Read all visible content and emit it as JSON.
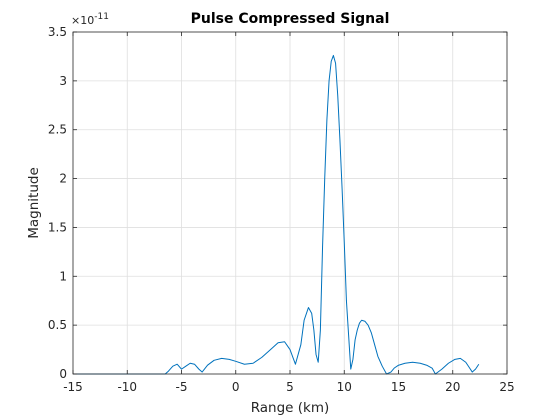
{
  "chart_data": {
    "type": "line",
    "title": "Pulse Compressed Signal",
    "xlabel": "Range (km)",
    "ylabel": "Magnitude",
    "xlim": [
      -15,
      25
    ],
    "ylim": [
      0,
      3.5
    ],
    "xticks": [
      -15,
      -10,
      -5,
      0,
      5,
      10,
      15,
      20,
      25
    ],
    "yticks": [
      0,
      0.5,
      1,
      1.5,
      2,
      2.5,
      3,
      3.5
    ],
    "y_exponent_label": "×10",
    "y_exponent_power": "-11",
    "grid": true,
    "series": [
      {
        "color": "#0072bd",
        "x": [
          -15,
          -6.5,
          -6.2,
          -5.8,
          -5.4,
          -5.0,
          -4.6,
          -4.2,
          -3.8,
          -3.4,
          -3.1,
          -2.6,
          -2.0,
          -1.3,
          -0.6,
          0.0,
          0.8,
          1.6,
          2.4,
          3.2,
          3.9,
          4.5,
          5.0,
          5.5,
          6.0,
          6.3,
          6.7,
          7.0,
          7.2,
          7.4,
          7.6,
          7.8,
          8.0,
          8.2,
          8.4,
          8.6,
          8.8,
          9.0,
          9.2,
          9.4,
          9.6,
          9.8,
          10.0,
          10.2,
          10.4,
          10.6,
          10.8,
          11.0,
          11.2,
          11.4,
          11.6,
          11.9,
          12.2,
          12.5,
          12.8,
          13.1,
          13.5,
          13.9,
          14.3,
          14.6,
          15.0,
          15.6,
          16.3,
          17.0,
          17.6,
          18.1,
          18.4,
          19.0,
          19.6,
          20.2,
          20.7,
          21.2,
          21.5,
          21.8,
          22.1,
          22.4
        ],
        "values": [
          0,
          0,
          0.03,
          0.08,
          0.1,
          0.05,
          0.08,
          0.11,
          0.1,
          0.05,
          0.02,
          0.09,
          0.14,
          0.16,
          0.15,
          0.13,
          0.1,
          0.11,
          0.17,
          0.25,
          0.32,
          0.33,
          0.25,
          0.1,
          0.3,
          0.55,
          0.68,
          0.62,
          0.45,
          0.2,
          0.12,
          0.45,
          1.3,
          2.0,
          2.6,
          3.0,
          3.2,
          3.26,
          3.18,
          2.85,
          2.4,
          1.9,
          1.35,
          0.75,
          0.4,
          0.05,
          0.15,
          0.35,
          0.45,
          0.52,
          0.55,
          0.54,
          0.5,
          0.42,
          0.3,
          0.18,
          0.08,
          0.0,
          0.02,
          0.06,
          0.09,
          0.11,
          0.12,
          0.11,
          0.09,
          0.06,
          0.0,
          0.05,
          0.11,
          0.15,
          0.16,
          0.12,
          0.07,
          0.02,
          0.05,
          0.1
        ]
      }
    ]
  }
}
